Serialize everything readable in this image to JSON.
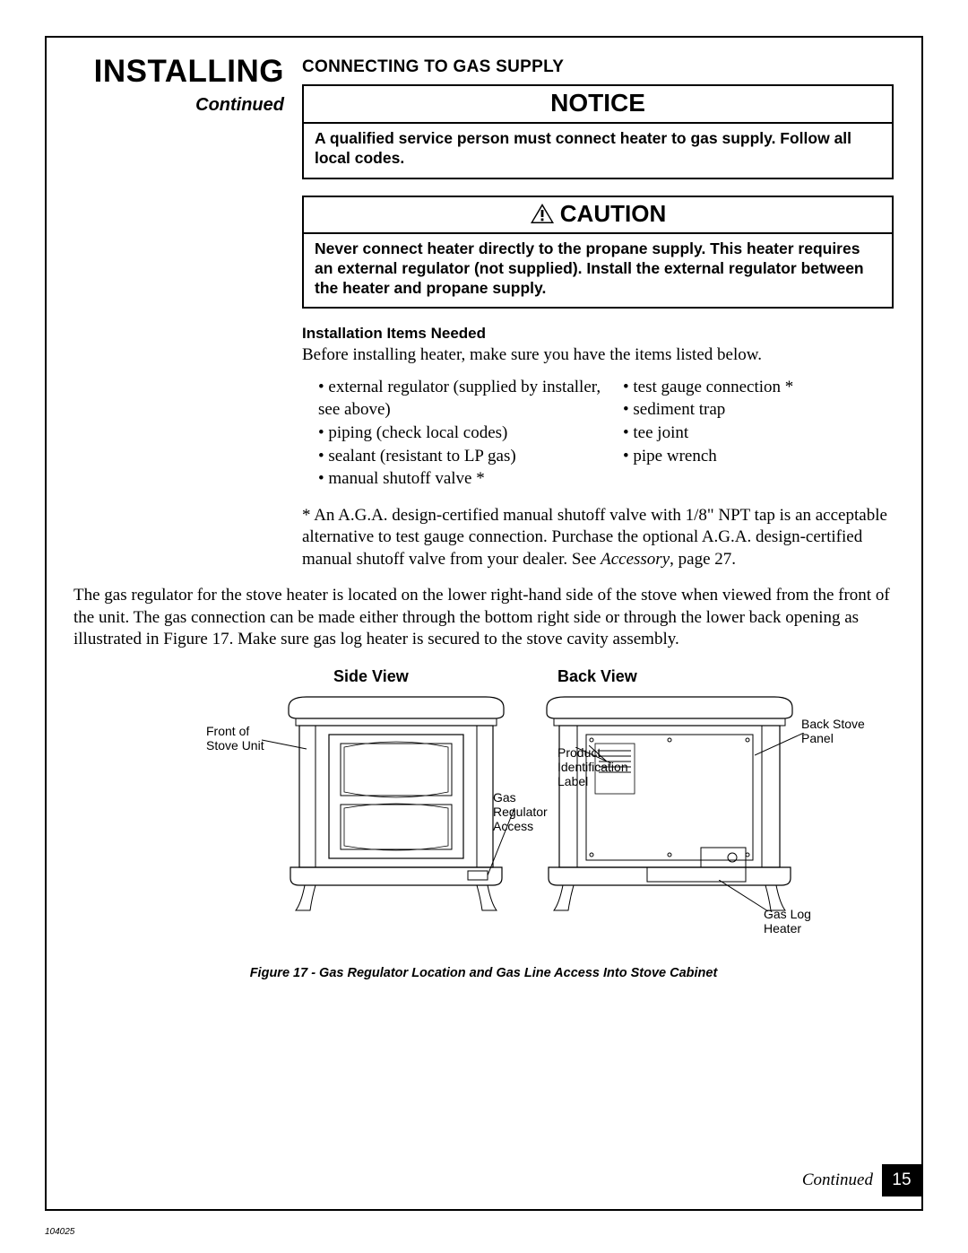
{
  "page": {
    "number": "15",
    "doc_id": "104025",
    "footer_continued": "Continued"
  },
  "left": {
    "title": "INSTALLING",
    "continued": "Continued"
  },
  "section": {
    "heading": "CONNECTING TO GAS SUPPLY"
  },
  "notice": {
    "header": "NOTICE",
    "body": "A qualified service person must connect heater to gas supply. Follow all local codes."
  },
  "caution": {
    "header": "CAUTION",
    "body": "Never connect heater directly to the propane supply. This heater requires an external regulator (not supplied). Install the external regulator between the heater and propane supply."
  },
  "install_items": {
    "heading": "Installation Items Needed",
    "intro": "Before installing heater, make sure you have the items listed below.",
    "col_a": [
      "external regulator (supplied by installer, see above)",
      "piping (check local codes)",
      "sealant (resistant to LP gas)",
      "manual shutoff valve *"
    ],
    "col_b": [
      "test gauge connection *",
      "sediment trap",
      "tee joint",
      "pipe wrench"
    ],
    "footnote_pre": "*  An A.G.A. design-certified manual shutoff valve with 1/8\" NPT tap is an acceptable alternative to test gauge connection. Purchase the optional A.G.A. design-certified manual shutoff valve from your dealer. See ",
    "footnote_em": "Accessory",
    "footnote_post": ", page 27."
  },
  "regulator_para": "The gas regulator for the stove heater is located on the lower right-hand side of the stove when viewed from the front of the unit. The gas connection can be made either through the bottom right side or through the lower back opening as illustrated in Figure 17.  Make sure gas log heater is secured to the stove cavity assembly.",
  "figure": {
    "side_label": "Side View",
    "back_label": "Back View",
    "caption": "Figure 17 - Gas Regulator Location and Gas Line Access Into Stove Cabinet",
    "callouts": {
      "front_of_stove": "Front of\nStove Unit",
      "gas_regulator": "Gas\nRegulator\nAccess",
      "product_label": "Product\nIdentification\nLabel",
      "back_panel": "Back Stove\nPanel",
      "gas_log_heater": "Gas Log\nHeater"
    }
  },
  "colors": {
    "text": "#000000",
    "bg": "#ffffff",
    "page_num_bg": "#000000",
    "page_num_fg": "#ffffff"
  }
}
